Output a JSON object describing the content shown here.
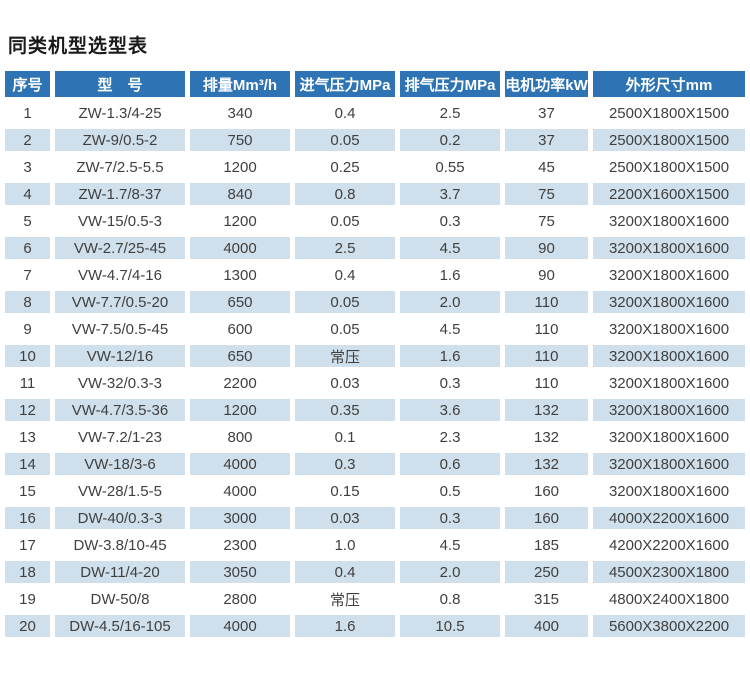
{
  "page": {
    "title": "同类机型选型表"
  },
  "colors": {
    "header_bg": "#2e74b5",
    "header_text": "#ffffff",
    "row_alt_bg": "#cfe0ec",
    "row_bg": "#ffffff",
    "body_text": "#3f3f3f",
    "title_text": "#1a1a1a"
  },
  "table": {
    "columns": [
      "序号",
      "型　号",
      "排量Mm³/h",
      "进气压力MPa",
      "排气压力MPa",
      "电机功率kW",
      "外形尺寸mm"
    ],
    "rows": [
      [
        "1",
        "ZW-1.3/4-25",
        "340",
        "0.4",
        "2.5",
        "37",
        "2500X1800X1500"
      ],
      [
        "2",
        "ZW-9/0.5-2",
        "750",
        "0.05",
        "0.2",
        "37",
        "2500X1800X1500"
      ],
      [
        "3",
        "ZW-7/2.5-5.5",
        "1200",
        "0.25",
        "0.55",
        "45",
        "2500X1800X1500"
      ],
      [
        "4",
        "ZW-1.7/8-37",
        "840",
        "0.8",
        "3.7",
        "75",
        "2200X1600X1500"
      ],
      [
        "5",
        "VW-15/0.5-3",
        "1200",
        "0.05",
        "0.3",
        "75",
        "3200X1800X1600"
      ],
      [
        "6",
        "VW-2.7/25-45",
        "4000",
        "2.5",
        "4.5",
        "90",
        "3200X1800X1600"
      ],
      [
        "7",
        "VW-4.7/4-16",
        "1300",
        "0.4",
        "1.6",
        "90",
        "3200X1800X1600"
      ],
      [
        "8",
        "VW-7.7/0.5-20",
        "650",
        "0.05",
        "2.0",
        "110",
        "3200X1800X1600"
      ],
      [
        "9",
        "VW-7.5/0.5-45",
        "600",
        "0.05",
        "4.5",
        "110",
        "3200X1800X1600"
      ],
      [
        "10",
        "VW-12/16",
        "650",
        "常压",
        "1.6",
        "110",
        "3200X1800X1600"
      ],
      [
        "11",
        "VW-32/0.3-3",
        "2200",
        "0.03",
        "0.3",
        "110",
        "3200X1800X1600"
      ],
      [
        "12",
        "VW-4.7/3.5-36",
        "1200",
        "0.35",
        "3.6",
        "132",
        "3200X1800X1600"
      ],
      [
        "13",
        "VW-7.2/1-23",
        "800",
        "0.1",
        "2.3",
        "132",
        "3200X1800X1600"
      ],
      [
        "14",
        "VW-18/3-6",
        "4000",
        "0.3",
        "0.6",
        "132",
        "3200X1800X1600"
      ],
      [
        "15",
        "VW-28/1.5-5",
        "4000",
        "0.15",
        "0.5",
        "160",
        "3200X1800X1600"
      ],
      [
        "16",
        "DW-40/0.3-3",
        "3000",
        "0.03",
        "0.3",
        "160",
        "4000X2200X1600"
      ],
      [
        "17",
        "DW-3.8/10-45",
        "2300",
        "1.0",
        "4.5",
        "185",
        "4200X2200X1600"
      ],
      [
        "18",
        "DW-11/4-20",
        "3050",
        "0.4",
        "2.0",
        "250",
        "4500X2300X1800"
      ],
      [
        "19",
        "DW-50/8",
        "2800",
        "常压",
        "0.8",
        "315",
        "4800X2400X1800"
      ],
      [
        "20",
        "DW-4.5/16-105",
        "4000",
        "1.6",
        "10.5",
        "400",
        "5600X3800X2200"
      ]
    ]
  }
}
